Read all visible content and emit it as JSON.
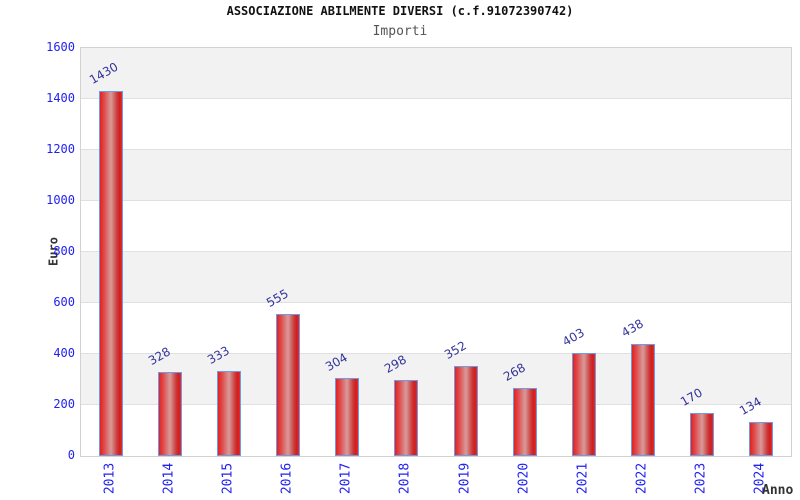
{
  "chart_data": {
    "type": "bar",
    "title": "ASSOCIAZIONE ABILMENTE DIVERSI (c.f.91072390742)",
    "subtitle": "Importi",
    "xlabel": "Anno",
    "ylabel": "Euro",
    "categories": [
      "2013",
      "2014",
      "2015",
      "2016",
      "2017",
      "2018",
      "2019",
      "2020",
      "2021",
      "2022",
      "2023",
      "2024"
    ],
    "values": [
      1430,
      328,
      333,
      555,
      304,
      298,
      352,
      268,
      403,
      438,
      170,
      134
    ],
    "ylim": [
      0,
      1600
    ],
    "yticks": [
      0,
      200,
      400,
      600,
      800,
      1000,
      1200,
      1400,
      1600
    ],
    "grid": "horizontal alternating bands, no vertical gridlines",
    "legend": "none",
    "colors": {
      "bar_fill_edge": "#e62020",
      "bar_fill_center": "#d89a9a",
      "bar_border": "#6a9ce9",
      "value_label": "#333399",
      "tick_label": "#2222ee",
      "axis_title": "#333333",
      "title": "#111111",
      "subtitle": "#555555",
      "band_gray": "#f2f2f2",
      "band_white": "#ffffff",
      "plot_border": "#d2d2d2",
      "gridline": "#e0e0e0",
      "background": "#ffffff"
    }
  }
}
